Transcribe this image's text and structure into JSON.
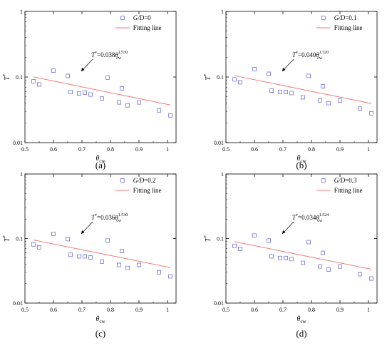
{
  "chart_data": [
    {
      "type": "scatter",
      "panel_label": "(a)",
      "legend_text": "G/D=0",
      "fit_label": "Fitting line",
      "equation": {
        "coef": "0.038",
        "exponent": "1.530"
      },
      "xlabel": "θcw",
      "ylabel": "T*",
      "xlim": [
        0.5,
        1.03
      ],
      "ylim": [
        0.01,
        1
      ],
      "x_scale": "linear",
      "y_scale": "log",
      "x_ticks": [
        "0.5",
        "0.6",
        "0.7",
        "0.8",
        "0.9",
        "1"
      ],
      "y_ticks": [
        "0.01",
        "0.1",
        "1"
      ],
      "legend_position": "top-right",
      "grid": false,
      "series": [
        {
          "kind": "markers",
          "x": [
            0.53,
            0.55,
            0.6,
            0.65,
            0.66,
            0.69,
            0.71,
            0.73,
            0.77,
            0.79,
            0.83,
            0.84,
            0.86,
            0.9,
            0.97,
            1.01
          ],
          "y": [
            0.086,
            0.077,
            0.125,
            0.104,
            0.059,
            0.056,
            0.058,
            0.054,
            0.047,
            0.098,
            0.041,
            0.067,
            0.037,
            0.041,
            0.031,
            0.026
          ]
        },
        {
          "kind": "fit",
          "coef": 0.038,
          "exponent": -1.53,
          "x_range": [
            0.53,
            1.01
          ]
        }
      ]
    },
    {
      "type": "scatter",
      "panel_label": "(b)",
      "legend_text": "G/D=0.1",
      "fit_label": "Fitting line",
      "equation": {
        "coef": "0.040",
        "exponent": "1.520"
      },
      "xlabel": "θcw",
      "ylabel": "T*",
      "xlim": [
        0.5,
        1.03
      ],
      "ylim": [
        0.01,
        1
      ],
      "x_scale": "linear",
      "y_scale": "log",
      "x_ticks": [
        "0.5",
        "0.6",
        "0.7",
        "0.8",
        "0.9",
        "1"
      ],
      "y_ticks": [
        "0.01",
        "0.1",
        "1"
      ],
      "legend_position": "top-right",
      "grid": false,
      "series": [
        {
          "kind": "markers",
          "x": [
            0.53,
            0.55,
            0.6,
            0.65,
            0.66,
            0.69,
            0.71,
            0.73,
            0.77,
            0.79,
            0.83,
            0.84,
            0.86,
            0.9,
            0.97,
            1.01
          ],
          "y": [
            0.092,
            0.083,
            0.132,
            0.112,
            0.062,
            0.059,
            0.059,
            0.057,
            0.049,
            0.104,
            0.044,
            0.072,
            0.04,
            0.044,
            0.033,
            0.028
          ]
        },
        {
          "kind": "fit",
          "coef": 0.04,
          "exponent": -1.52,
          "x_range": [
            0.53,
            1.01
          ]
        }
      ]
    },
    {
      "type": "scatter",
      "panel_label": "(c)",
      "legend_text": "G/D=0.2",
      "fit_label": "Fitting line",
      "equation": {
        "coef": "0.036",
        "exponent": "1.530"
      },
      "xlabel": "θcw",
      "ylabel": "T*",
      "xlim": [
        0.5,
        1.03
      ],
      "ylim": [
        0.01,
        1
      ],
      "x_scale": "linear",
      "y_scale": "log",
      "x_ticks": [
        "0.5",
        "0.6",
        "0.7",
        "0.8",
        "0.9",
        "1"
      ],
      "y_ticks": [
        "0.01",
        "0.1",
        "1"
      ],
      "legend_position": "top-right",
      "grid": false,
      "series": [
        {
          "kind": "markers",
          "x": [
            0.53,
            0.55,
            0.6,
            0.65,
            0.66,
            0.69,
            0.71,
            0.73,
            0.77,
            0.79,
            0.83,
            0.84,
            0.86,
            0.9,
            0.97,
            1.01
          ],
          "y": [
            0.081,
            0.073,
            0.118,
            0.098,
            0.056,
            0.053,
            0.053,
            0.051,
            0.044,
            0.093,
            0.039,
            0.064,
            0.035,
            0.039,
            0.03,
            0.026
          ]
        },
        {
          "kind": "fit",
          "coef": 0.036,
          "exponent": -1.53,
          "x_range": [
            0.53,
            1.01
          ]
        }
      ]
    },
    {
      "type": "scatter",
      "panel_label": "(d)",
      "legend_text": "G/D=0.3",
      "fit_label": "Fitting line",
      "equation": {
        "coef": "0.034",
        "exponent": "1.524"
      },
      "xlabel": "θcw",
      "ylabel": "T*",
      "xlim": [
        0.5,
        1.03
      ],
      "ylim": [
        0.01,
        1
      ],
      "x_scale": "linear",
      "y_scale": "log",
      "x_ticks": [
        "0.5",
        "0.6",
        "0.7",
        "0.8",
        "0.9",
        "1"
      ],
      "y_ticks": [
        "0.01",
        "0.1",
        "1"
      ],
      "legend_position": "top-right",
      "grid": false,
      "series": [
        {
          "kind": "markers",
          "x": [
            0.53,
            0.55,
            0.6,
            0.65,
            0.66,
            0.69,
            0.71,
            0.73,
            0.77,
            0.79,
            0.83,
            0.84,
            0.86,
            0.9,
            0.97,
            1.01
          ],
          "y": [
            0.077,
            0.069,
            0.111,
            0.093,
            0.053,
            0.05,
            0.05,
            0.048,
            0.042,
            0.088,
            0.037,
            0.06,
            0.033,
            0.037,
            0.028,
            0.024
          ]
        },
        {
          "kind": "fit",
          "coef": 0.034,
          "exponent": -1.524,
          "x_range": [
            0.53,
            1.01
          ]
        }
      ]
    }
  ],
  "colors": {
    "marker": "#6f6fe0",
    "fit_line": "#f07a7a",
    "axis": "#000000"
  }
}
